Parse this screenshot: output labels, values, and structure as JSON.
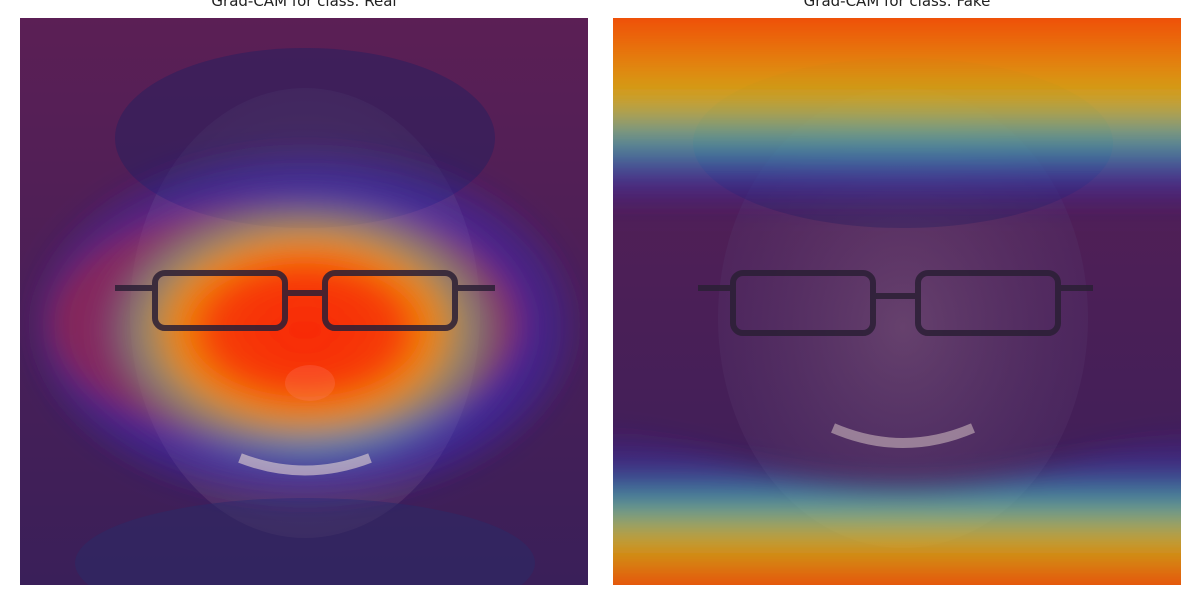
{
  "panels": [
    {
      "title": "Grad-CAM for class: Real",
      "heatmap_focus": "center-eyes"
    },
    {
      "title": "Grad-CAM for class: Fake",
      "heatmap_focus": "top-and-bottom"
    }
  ],
  "colors": {
    "background_tint": "#4b1f4b",
    "skin_tone": "#b98d8a",
    "heat_red": "#ff2a00",
    "heat_orange": "#ff8a00",
    "heat_yellow": "#ffe000",
    "heat_cyan": "#38d6d6",
    "heat_blue": "#4c2bd6"
  }
}
